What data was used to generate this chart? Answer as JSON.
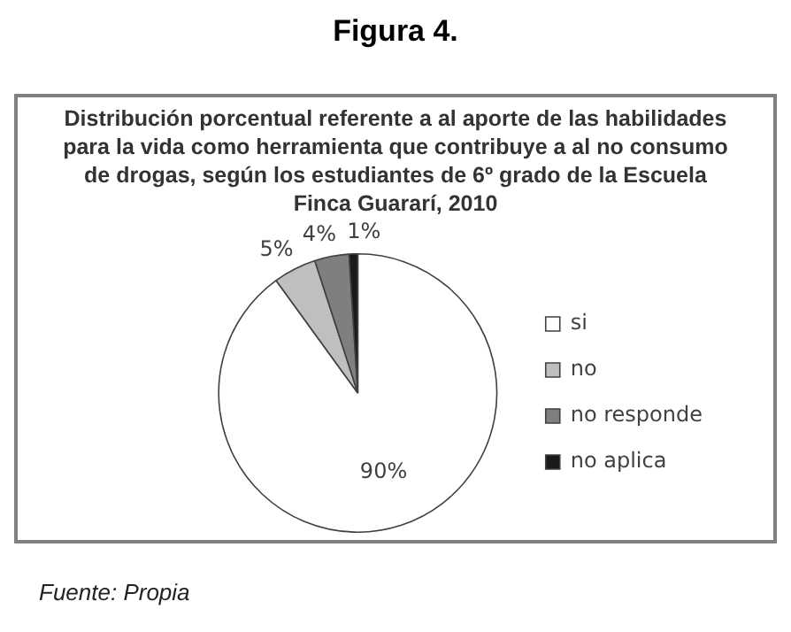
{
  "chart_data": {
    "type": "pie",
    "title": "Distribución porcentual referente a al aporte de las habilidades para la vida como herramienta que contribuye a al no consumo de drogas, según los estudiantes de 6º grado de la Escuela Finca Guararí, 2010",
    "categories": [
      "si",
      "no",
      "no responde",
      "no aplica"
    ],
    "values": [
      90,
      5,
      4,
      1
    ],
    "colors": [
      "#ffffff",
      "#bfbfbf",
      "#7f7f7f",
      "#1a1a1a"
    ],
    "value_labels": [
      "90%",
      "5%",
      "4%",
      "1%"
    ],
    "legend": "right",
    "annotations": [
      "Figura 4.",
      "Fuente: Propia"
    ]
  }
}
